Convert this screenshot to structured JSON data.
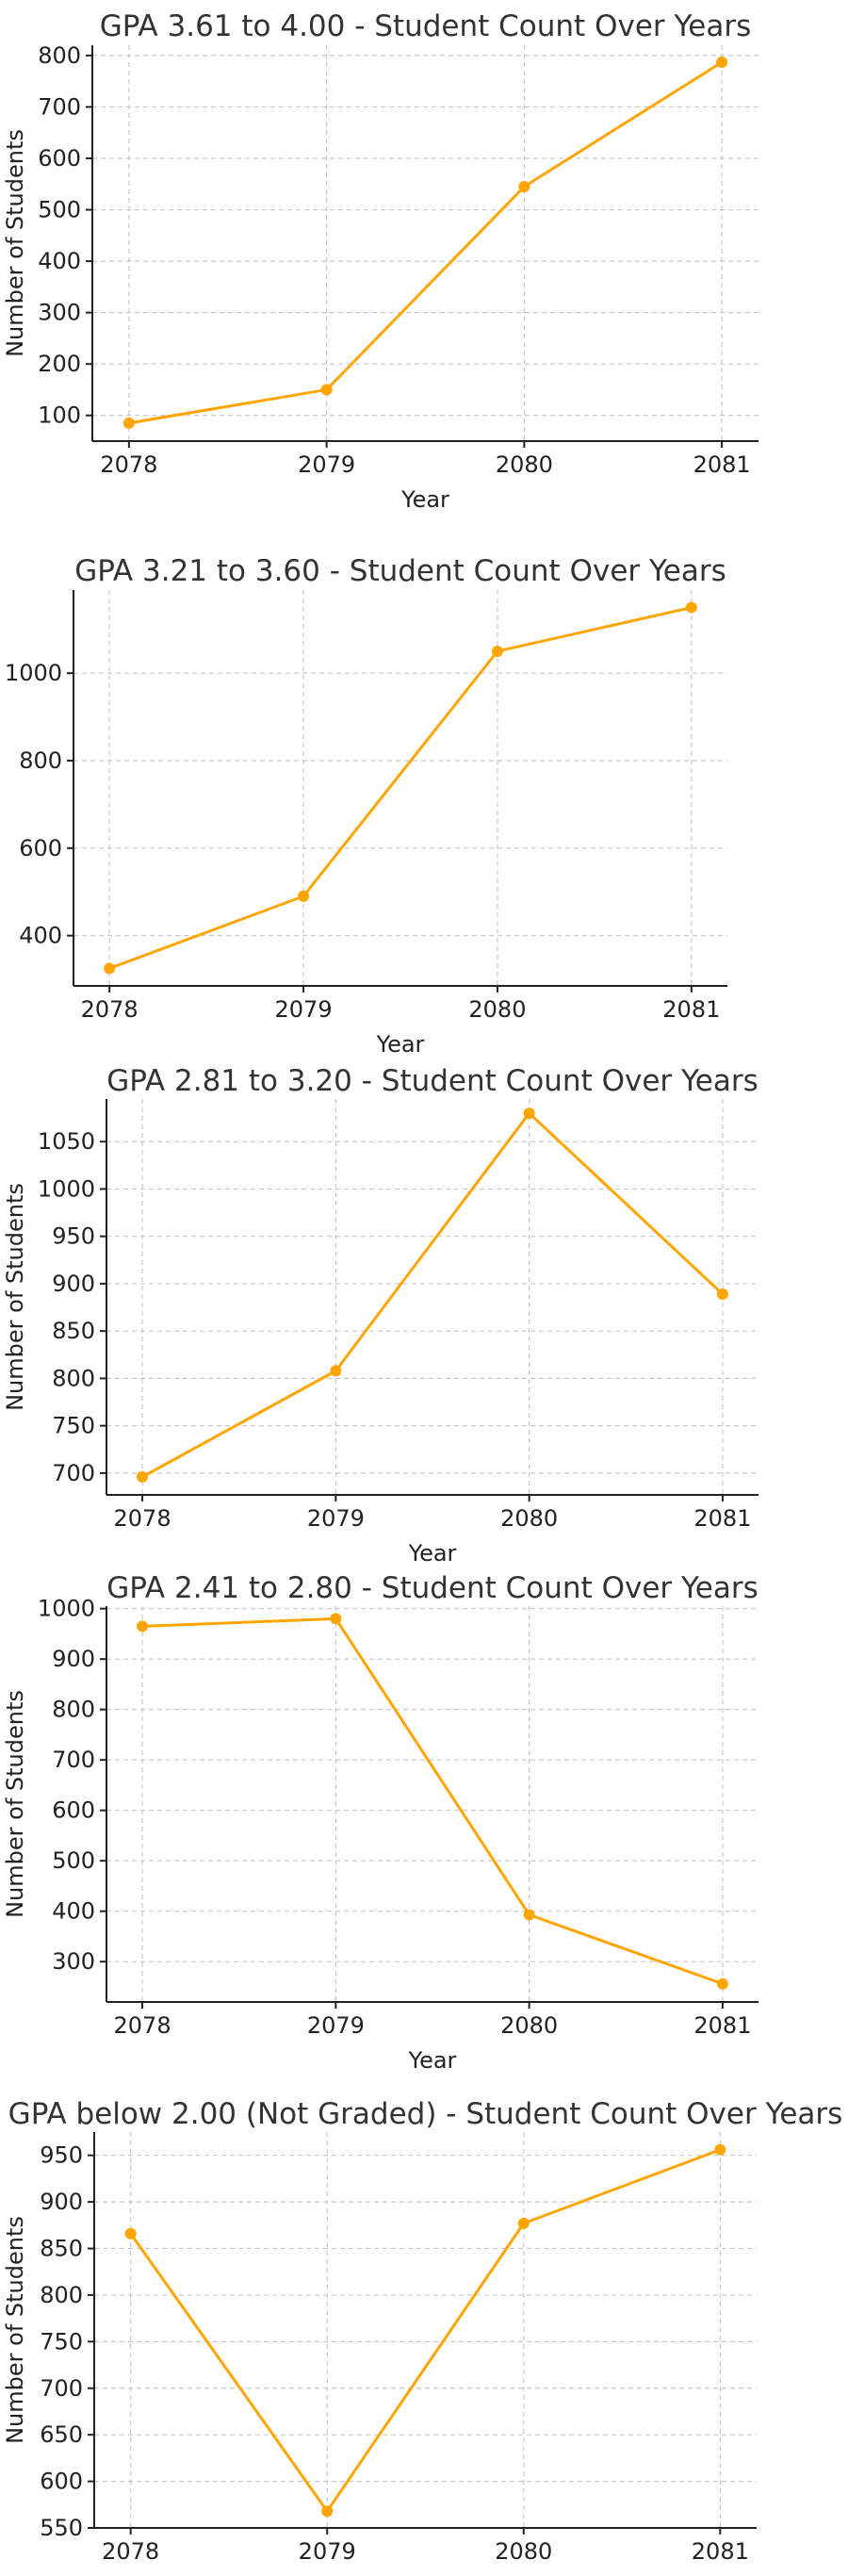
{
  "colors": {
    "series": "#FFA500"
  },
  "chart_data": [
    {
      "type": "line",
      "title": "GPA 3.61 to 4.00 - Student Count Over Years",
      "xlabel": "Year",
      "ylabel": "Number of Students",
      "x": [
        2078,
        2079,
        2080,
        2081
      ],
      "xticks": [
        "2078",
        "2079",
        "2080",
        "2081"
      ],
      "values": [
        85,
        150,
        545,
        787
      ],
      "ylim": [
        50,
        820
      ],
      "yticks": [
        100,
        200,
        300,
        400,
        500,
        600,
        700,
        800
      ],
      "grid": true
    },
    {
      "type": "line",
      "title": "GPA 3.21 to 3.60 - Student Count Over Years",
      "xlabel": "Year",
      "ylabel": "",
      "x": [
        2078,
        2079,
        2080,
        2081
      ],
      "xticks": [
        "2078",
        "2079",
        "2080",
        "2081"
      ],
      "values": [
        325,
        490,
        1050,
        1150
      ],
      "ylim": [
        285,
        1190
      ],
      "yticks": [
        400,
        600,
        800,
        1000
      ],
      "grid": true
    },
    {
      "type": "line",
      "title": "GPA 2.81 to 3.20 - Student Count Over Years",
      "xlabel": "Year",
      "ylabel": "Number of Students",
      "x": [
        2078,
        2079,
        2080,
        2081
      ],
      "xticks": [
        "2078",
        "2079",
        "2080",
        "2081"
      ],
      "values": [
        696,
        808,
        1080,
        889
      ],
      "ylim": [
        677,
        1095
      ],
      "yticks": [
        700,
        750,
        800,
        850,
        900,
        950,
        1000,
        1050
      ],
      "grid": true
    },
    {
      "type": "line",
      "title": "GPA 2.41 to 2.80 - Student Count Over Years",
      "xlabel": "Year",
      "ylabel": "Number of Students",
      "x": [
        2078,
        2079,
        2080,
        2081
      ],
      "xticks": [
        "2078",
        "2079",
        "2080",
        "2081"
      ],
      "values": [
        965,
        980,
        393,
        256
      ],
      "ylim": [
        220,
        1005
      ],
      "yticks": [
        300,
        400,
        500,
        600,
        700,
        800,
        900,
        1000
      ],
      "grid": true
    },
    {
      "type": "line",
      "title": "GPA below 2.00 (Not Graded) - Student Count Over Years",
      "xlabel": "Year",
      "ylabel": "Number of Students",
      "x": [
        2078,
        2079,
        2080,
        2081
      ],
      "xticks": [
        "2078",
        "2079",
        "2080",
        "2081"
      ],
      "values": [
        866,
        568,
        877,
        956
      ],
      "ylim": [
        550,
        975
      ],
      "yticks": [
        550,
        600,
        650,
        700,
        750,
        800,
        850,
        900,
        950
      ],
      "grid": true
    }
  ]
}
